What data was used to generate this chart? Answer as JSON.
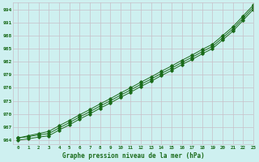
{
  "xlabel": "Graphe pression niveau de la mer (hPa)",
  "background_color": "#cef0f0",
  "grid_color": "#c8c0c8",
  "line_color": "#1a6b1a",
  "xlim": [
    -0.5,
    23
  ],
  "ylim": [
    963.0,
    995.5
  ],
  "yticks": [
    964,
    967,
    970,
    973,
    976,
    979,
    982,
    985,
    988,
    991,
    994
  ],
  "xticks": [
    0,
    1,
    2,
    3,
    4,
    5,
    6,
    7,
    8,
    9,
    10,
    11,
    12,
    13,
    14,
    15,
    16,
    17,
    18,
    19,
    20,
    21,
    22,
    23
  ],
  "x": [
    0,
    1,
    2,
    3,
    4,
    5,
    6,
    7,
    8,
    9,
    10,
    11,
    12,
    13,
    14,
    15,
    16,
    17,
    18,
    19,
    20,
    21,
    22,
    23
  ],
  "y_main": [
    964.5,
    964.8,
    965.2,
    965.5,
    966.8,
    968.0,
    969.3,
    970.5,
    971.8,
    973.0,
    974.3,
    975.5,
    976.8,
    978.0,
    979.3,
    980.5,
    981.8,
    983.0,
    984.3,
    985.5,
    987.5,
    989.5,
    992.0,
    994.5
  ],
  "y_upper": [
    964.5,
    965.0,
    965.5,
    966.0,
    967.3,
    968.5,
    969.8,
    971.0,
    972.3,
    973.5,
    974.8,
    976.0,
    977.3,
    978.5,
    979.8,
    981.0,
    982.3,
    983.5,
    984.8,
    986.0,
    988.0,
    990.0,
    992.5,
    995.0
  ],
  "y_lower": [
    964.0,
    964.3,
    964.7,
    965.0,
    966.3,
    967.5,
    968.8,
    970.0,
    971.3,
    972.5,
    973.8,
    975.0,
    976.3,
    977.5,
    978.8,
    980.0,
    981.3,
    982.5,
    983.8,
    985.0,
    987.0,
    989.0,
    991.5,
    994.0
  ]
}
